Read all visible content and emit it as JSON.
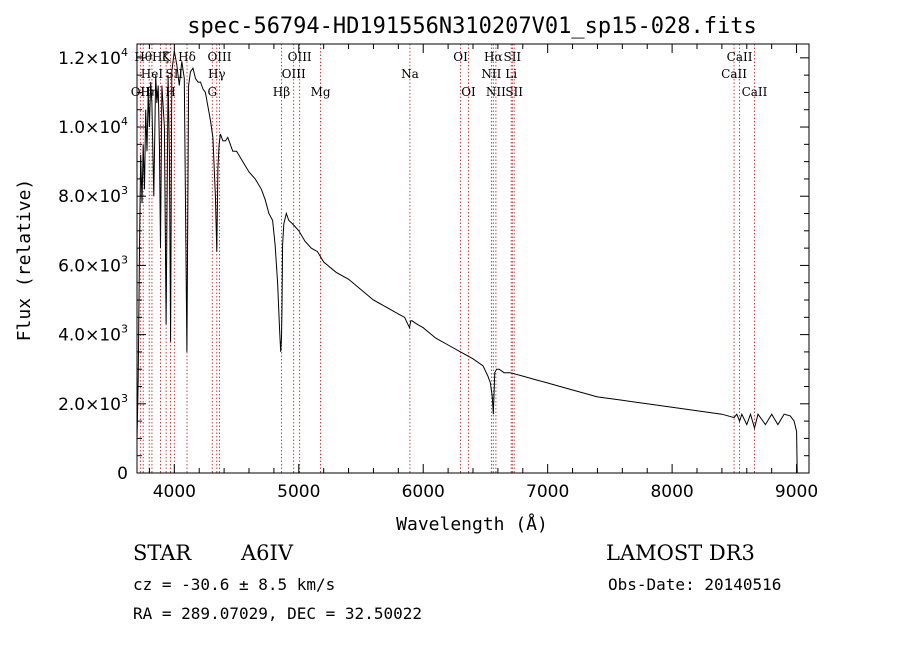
{
  "chart_data": {
    "type": "line",
    "title": "spec-56794-HD191556N310207V01_sp15-028.fits",
    "xlabel": "Wavelength (Å)",
    "ylabel": "Flux (relative)",
    "xlim": [
      3700,
      9100
    ],
    "ylim": [
      0,
      12400
    ],
    "x_ticks": [
      4000,
      5000,
      6000,
      7000,
      8000,
      9000
    ],
    "x_tick_labels": [
      "4000",
      "5000",
      "6000",
      "7000",
      "8000",
      "9000"
    ],
    "y_ticks": [
      0,
      2000,
      4000,
      6000,
      8000,
      10000,
      12000
    ],
    "y_tick_labels": [
      {
        "mant": "0",
        "exp": ""
      },
      {
        "mant": "2.0×10",
        "exp": "3"
      },
      {
        "mant": "4.0×10",
        "exp": "3"
      },
      {
        "mant": "6.0×10",
        "exp": "3"
      },
      {
        "mant": "8.0×10",
        "exp": "3"
      },
      {
        "mant": "1.0×10",
        "exp": "4"
      },
      {
        "mant": "1.2×10",
        "exp": "4"
      }
    ],
    "series": [
      {
        "name": "spectrum",
        "x": [
          3700,
          3710,
          3720,
          3730,
          3740,
          3750,
          3760,
          3770,
          3780,
          3790,
          3800,
          3810,
          3820,
          3835,
          3850,
          3860,
          3870,
          3880,
          3889,
          3900,
          3920,
          3934,
          3950,
          3960,
          3970,
          3980,
          4000,
          4020,
          4040,
          4060,
          4080,
          4101,
          4115,
          4130,
          4150,
          4170,
          4190,
          4210,
          4230,
          4250,
          4270,
          4290,
          4310,
          4330,
          4341,
          4350,
          4360,
          4370,
          4390,
          4410,
          4430,
          4450,
          4470,
          4500,
          4550,
          4600,
          4650,
          4700,
          4730,
          4760,
          4790,
          4810,
          4830,
          4845,
          4855,
          4861,
          4865,
          4870,
          4880,
          4900,
          4920,
          4950,
          5000,
          5050,
          5100,
          5150,
          5200,
          5300,
          5400,
          5500,
          5600,
          5700,
          5800,
          5850,
          5890,
          5900,
          5910,
          5950,
          6000,
          6100,
          6200,
          6300,
          6400,
          6480,
          6520,
          6540,
          6555,
          6563,
          6568,
          6575,
          6590,
          6610,
          6650,
          6700,
          6800,
          6900,
          7000,
          7200,
          7400,
          7600,
          7800,
          8000,
          8200,
          8400,
          8498,
          8520,
          8542,
          8560,
          8600,
          8630,
          8662,
          8690,
          8750,
          8800,
          8850,
          8900,
          8950,
          8980,
          9000,
          9005
        ],
        "y": [
          900,
          2700,
          6500,
          9200,
          7800,
          9500,
          8200,
          10500,
          9300,
          11000,
          10000,
          11300,
          10700,
          8000,
          11500,
          10700,
          11200,
          9500,
          6500,
          11200,
          10000,
          4300,
          11500,
          9200,
          3800,
          11600,
          12200,
          11800,
          11200,
          11900,
          11400,
          3500,
          11200,
          11600,
          11700,
          11400,
          11300,
          11300,
          11100,
          11000,
          10600,
          10200,
          9700,
          8000,
          6400,
          8800,
          9500,
          9800,
          9600,
          9600,
          9700,
          9500,
          9300,
          9300,
          9000,
          8700,
          8500,
          8200,
          7900,
          7500,
          7300,
          6600,
          5500,
          4200,
          3500,
          3900,
          4800,
          6600,
          7200,
          7500,
          7300,
          7200,
          7000,
          6700,
          6500,
          6400,
          6100,
          5800,
          5600,
          5300,
          5000,
          4800,
          4600,
          4500,
          4200,
          4400,
          4400,
          4300,
          4200,
          3900,
          3700,
          3500,
          3300,
          3100,
          2800,
          2600,
          2200,
          1700,
          2200,
          2900,
          3000,
          3000,
          2900,
          2900,
          2800,
          2700,
          2600,
          2400,
          2200,
          2100,
          2000,
          1900,
          1800,
          1700,
          1600,
          1700,
          1500,
          1700,
          1400,
          1700,
          1300,
          1700,
          1400,
          1700,
          1400,
          1700,
          1650,
          1500,
          1200,
          0
        ]
      }
    ],
    "line_markers": [
      {
        "w": 3727,
        "label": "OII",
        "row": 3
      },
      {
        "w": 3750,
        "label": "Hθ",
        "row": 1
      },
      {
        "w": 3798,
        "label": "Hη",
        "row": 3
      },
      {
        "w": 3820,
        "label": "HeI",
        "row": 2
      },
      {
        "w": 3889,
        "label": "Hζ",
        "row": 1
      },
      {
        "w": 3934,
        "label": "K",
        "row": 1
      },
      {
        "w": 3969,
        "label": "H",
        "row": 3
      },
      {
        "w": 4000,
        "label": "SII",
        "row": 2
      },
      {
        "w": 4102,
        "label": "Hδ",
        "row": 1
      },
      {
        "w": 4305,
        "label": "G",
        "row": 3
      },
      {
        "w": 4341,
        "label": "Hγ",
        "row": 2
      },
      {
        "w": 4363,
        "label": "OIII",
        "row": 1
      },
      {
        "w": 4861,
        "label": "Hβ",
        "row": 3
      },
      {
        "w": 4959,
        "label": "OIII",
        "row": 2
      },
      {
        "w": 5007,
        "label": "OIII",
        "row": 1
      },
      {
        "w": 5175,
        "label": "Mg",
        "row": 3
      },
      {
        "w": 5893,
        "label": "Na",
        "row": 2
      },
      {
        "w": 6300,
        "label": "OI",
        "row": 1
      },
      {
        "w": 6364,
        "label": "OI",
        "row": 3
      },
      {
        "w": 6548,
        "label": "NII",
        "row": 2
      },
      {
        "w": 6563,
        "label": "Hα",
        "row": 1
      },
      {
        "w": 6584,
        "label": "NII",
        "row": 3
      },
      {
        "w": 6707,
        "label": "Li",
        "row": 2
      },
      {
        "w": 6716,
        "label": "SII",
        "row": 1
      },
      {
        "w": 6731,
        "label": "SII",
        "row": 3
      },
      {
        "w": 8498,
        "label": "CaII",
        "row": 2
      },
      {
        "w": 8542,
        "label": "CaII",
        "row": 1
      },
      {
        "w": 8662,
        "label": "CaII",
        "row": 3
      }
    ],
    "marker_color": "#c03030",
    "line_color": "#000000"
  },
  "info": {
    "object_class": "STAR",
    "subclass": "A6IV",
    "survey": "LAMOST DR3",
    "cz": "cz = -30.6 ± 8.5 km/s",
    "obs_date": "Obs-Date: 20140516",
    "coords": "RA = 289.07029, DEC =  32.50022"
  }
}
